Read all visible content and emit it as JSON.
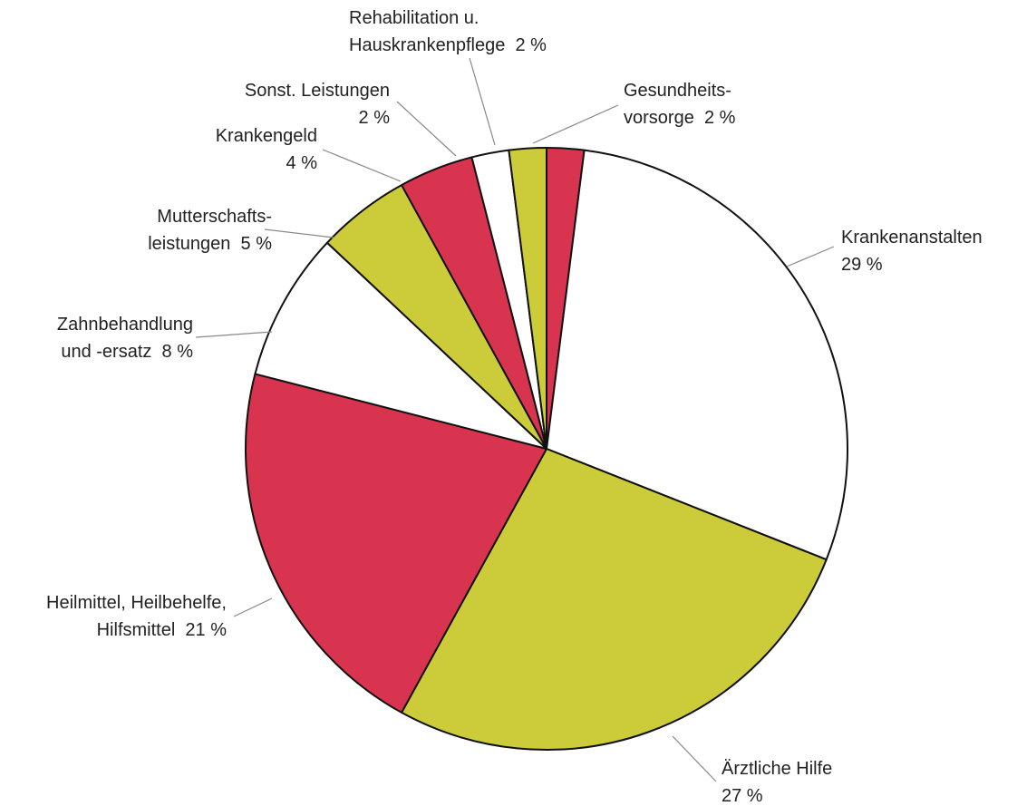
{
  "chart_data": {
    "type": "pie",
    "categories": [
      "Gesundheits-\nvorsorge",
      "Krankenanstalten",
      "Ärztliche Hilfe",
      "Heilmittel, Heilbehelfe,\nHilfsmittel",
      "Zahnbehandlung\nund -ersatz",
      "Mutterschafts-\nleistungen",
      "Krankengeld",
      "Sonst. Leistungen",
      "Rehabilitation u.\nHauskrankenpflege"
    ],
    "values": [
      2,
      29,
      27,
      21,
      8,
      5,
      4,
      2,
      2
    ],
    "value_labels": [
      "2 %",
      "29 %",
      "27 %",
      "21 %",
      "8 %",
      "5 %",
      "4 %",
      "2 %",
      "2 %"
    ],
    "colors": [
      "#d8344f",
      "#ffffff",
      "#cccc3a",
      "#d8344f",
      "#ffffff",
      "#cccc3a",
      "#d8344f",
      "#ffffff",
      "#cccc3a"
    ]
  }
}
